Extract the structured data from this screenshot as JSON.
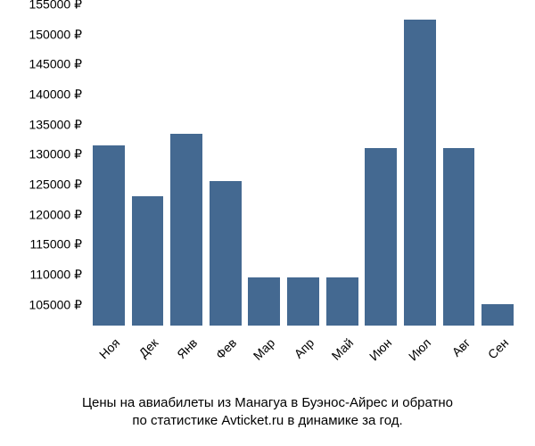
{
  "chart": {
    "type": "bar",
    "background_color": "#ffffff",
    "bar_color": "#446991",
    "text_color": "#000000",
    "y_axis": {
      "min": 103000,
      "max": 155000,
      "tick_step": 5000,
      "ticks": [
        105000,
        110000,
        115000,
        120000,
        125000,
        130000,
        135000,
        140000,
        145000,
        150000,
        155000
      ],
      "currency_symbol": "₽",
      "label_fontsize": 14
    },
    "x_axis": {
      "categories": [
        "Ноя",
        "Дек",
        "Янв",
        "Фев",
        "Мар",
        "Апр",
        "Май",
        "Июн",
        "Июл",
        "Авг",
        "Сен"
      ],
      "label_fontsize": 14,
      "label_rotation_deg": -45
    },
    "values": [
      133000,
      124500,
      135000,
      127000,
      111000,
      111000,
      111000,
      132500,
      154000,
      132500,
      106500
    ],
    "bar_width_ratio": 0.82,
    "caption": {
      "line1": "Цены на авиабилеты из Манагуа в Буэнос-Айрес и обратно",
      "line2": "по статистике Avticket.ru в динамике за год.",
      "fontsize": 15
    }
  }
}
